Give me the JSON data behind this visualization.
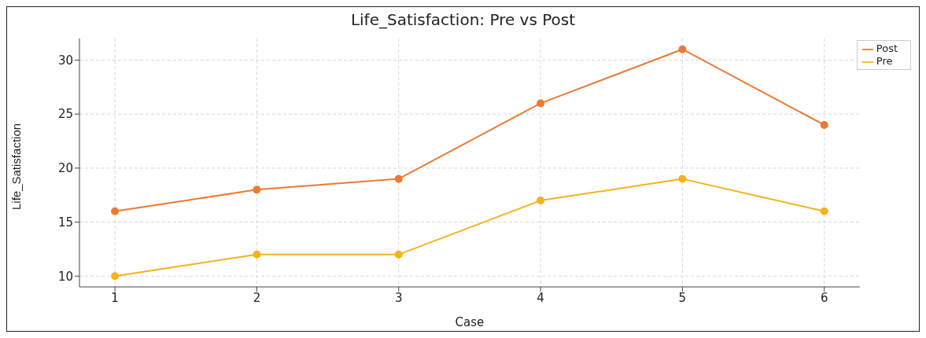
{
  "chart_data": {
    "type": "line",
    "title": "Life_Satisfaction: Pre vs Post",
    "xlabel": "Case",
    "ylabel": "Life_Satisfaction",
    "x": [
      1,
      2,
      3,
      4,
      5,
      6
    ],
    "series": [
      {
        "name": "Pre",
        "color": "#f5b21c",
        "values": [
          10,
          12,
          12,
          17,
          19,
          16
        ]
      },
      {
        "name": "Post",
        "color": "#ec7a33",
        "values": [
          16,
          18,
          19,
          26,
          31,
          24
        ]
      }
    ],
    "xlim": [
      0.75,
      6.25
    ],
    "xticks": [
      1,
      2,
      3,
      4,
      5,
      6
    ],
    "ylim": [
      9,
      32
    ],
    "yticks": [
      10,
      15,
      20,
      25,
      30
    ],
    "grid": true,
    "legend": "top right",
    "marker": "circle",
    "line_style": "solid"
  }
}
